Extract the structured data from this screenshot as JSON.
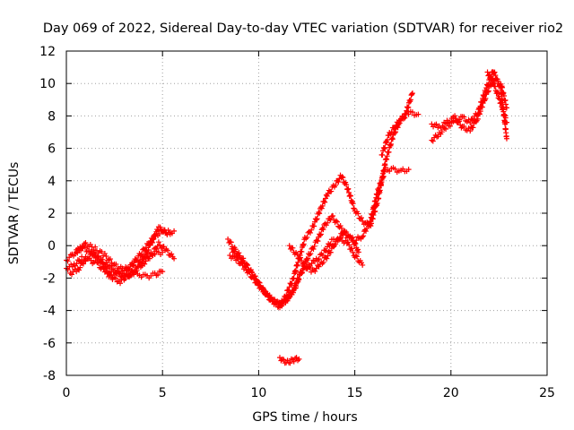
{
  "chart_data": {
    "type": "scatter",
    "title": "Day 069 of 2022, Sidereal Day-to-day VTEC variation (SDTVAR) for receiver rio2",
    "xlabel": "GPS time / hours",
    "ylabel": "SDTVAR / TECUs",
    "xlim": [
      0,
      25
    ],
    "ylim": [
      -8,
      12
    ],
    "xticks": [
      0,
      5,
      10,
      15,
      20,
      25
    ],
    "yticks": [
      -8,
      -6,
      -4,
      -2,
      0,
      2,
      4,
      6,
      8,
      10,
      12
    ],
    "grid": true,
    "grid_style": "dotted",
    "marker": "plus",
    "marker_color": "#ff0000",
    "series": [
      {
        "x": [
          0.0,
          0.3,
          0.6,
          0.9,
          1.2,
          1.6,
          2.0,
          2.4,
          2.7,
          3.0,
          3.4,
          3.8,
          4.2,
          4.6,
          5.0,
          5.4
        ],
        "y": [
          -0.9,
          -0.6,
          -0.3,
          -0.1,
          -0.4,
          -0.7,
          -1.3,
          -1.9,
          -1.6,
          -1.8,
          -1.2,
          -0.6,
          0.0,
          0.6,
          0.9,
          0.7
        ]
      },
      {
        "x": [
          0.0,
          0.4,
          0.8,
          1.2,
          1.6,
          2.0,
          2.4,
          2.8,
          3.2,
          3.6,
          4.0,
          4.4,
          4.8,
          5.2,
          5.6
        ],
        "y": [
          -1.4,
          -1.2,
          -0.8,
          -0.9,
          -1.1,
          -1.6,
          -2.0,
          -2.2,
          -1.8,
          -1.5,
          -1.1,
          -0.6,
          0.1,
          -0.3,
          -0.8
        ]
      },
      {
        "x": [
          0.2,
          0.6,
          1.0,
          1.4,
          1.8,
          2.2,
          2.6,
          3.0,
          3.4,
          3.8,
          4.2,
          4.6,
          5.0
        ],
        "y": [
          -1.7,
          -1.5,
          -0.8,
          -0.5,
          -0.9,
          -1.3,
          -1.6,
          -2.0,
          -1.7,
          -1.8,
          -1.9,
          -1.8,
          -1.6
        ]
      },
      {
        "x": [
          0.5,
          1.0,
          1.5,
          2.0,
          2.5,
          3.0,
          3.5,
          4.0,
          4.5,
          5.0
        ],
        "y": [
          -0.4,
          0.1,
          -0.2,
          -0.6,
          -1.2,
          -1.5,
          -1.1,
          -0.7,
          -0.5,
          -0.4
        ]
      },
      {
        "x": [
          3.2,
          3.6,
          4.0,
          4.4,
          4.8,
          5.2,
          5.6
        ],
        "y": [
          -1.9,
          -1.4,
          -0.8,
          0.1,
          1.1,
          0.8,
          0.9
        ]
      },
      {
        "x": [
          8.4,
          8.8,
          9.2,
          9.6,
          10.0,
          10.4,
          10.8,
          11.1,
          11.4,
          11.8,
          12.1,
          12.4,
          12.8,
          13.2,
          13.6,
          14.0,
          14.3,
          14.6,
          15.0,
          15.4,
          15.8,
          16.2,
          16.6,
          17.0,
          17.4,
          17.8,
          18.3
        ],
        "y": [
          0.4,
          -0.3,
          -0.9,
          -1.6,
          -2.3,
          -3.0,
          -3.5,
          -3.7,
          -3.1,
          -2.0,
          -0.8,
          0.4,
          1.1,
          2.2,
          3.2,
          3.8,
          4.3,
          3.6,
          2.2,
          1.5,
          1.2,
          2.8,
          5.2,
          6.8,
          7.8,
          8.2,
          8.1
        ]
      },
      {
        "x": [
          8.5,
          8.9,
          9.3,
          9.7,
          10.1,
          10.5,
          10.9,
          11.2,
          11.5,
          11.9,
          12.2,
          12.6,
          13.0,
          13.4,
          13.8,
          14.2,
          14.6,
          15.0,
          15.4,
          15.8,
          16.2,
          16.6,
          17.0,
          17.4,
          17.8
        ],
        "y": [
          -0.6,
          -0.9,
          -1.4,
          -2.0,
          -2.6,
          -3.1,
          -3.5,
          -3.6,
          -3.3,
          -2.6,
          -1.7,
          -0.6,
          0.2,
          1.2,
          1.8,
          1.2,
          0.6,
          0.3,
          0.6,
          1.5,
          3.4,
          4.7,
          4.7,
          4.6,
          4.7
        ]
      },
      {
        "x": [
          8.6,
          9.0,
          9.4,
          9.8,
          10.2,
          10.6,
          11.0,
          11.4,
          11.8,
          12.2,
          12.6,
          13.0,
          13.4,
          13.8,
          14.2,
          14.6,
          15.0,
          15.4
        ],
        "y": [
          -0.2,
          -0.8,
          -1.3,
          -2.0,
          -2.7,
          -3.3,
          -3.7,
          -3.4,
          -2.8,
          -1.6,
          -1.2,
          -0.9,
          -0.4,
          0.3,
          0.4,
          0.2,
          -0.6,
          -1.2
        ]
      },
      {
        "x": [
          11.6,
          12.0,
          12.4,
          12.8,
          13.2,
          13.6,
          14.0,
          14.4,
          14.8,
          15.2
        ],
        "y": [
          0.0,
          -0.6,
          -1.2,
          -1.6,
          -1.2,
          -0.6,
          0.2,
          0.8,
          0.6,
          -0.4
        ]
      },
      {
        "x": [
          11.1,
          11.3,
          11.5,
          11.7,
          11.9,
          12.1
        ],
        "y": [
          -6.9,
          -7.1,
          -7.2,
          -7.1,
          -7.0,
          -7.0
        ]
      },
      {
        "x": [
          16.4,
          16.8,
          17.2,
          17.6,
          18.0
        ],
        "y": [
          5.6,
          6.9,
          7.5,
          8.0,
          9.4
        ]
      },
      {
        "x": [
          19.0,
          19.4,
          19.8,
          20.2,
          20.6,
          21.0,
          21.4,
          21.8,
          22.2,
          22.6,
          22.9
        ],
        "y": [
          7.5,
          7.3,
          7.6,
          7.9,
          7.3,
          7.1,
          7.9,
          9.2,
          10.3,
          10.0,
          8.5
        ]
      },
      {
        "x": [
          19.0,
          19.4,
          19.8,
          20.2,
          20.6,
          21.0,
          21.4,
          21.8,
          22.2,
          22.6,
          22.9
        ],
        "y": [
          6.5,
          6.9,
          7.4,
          7.6,
          7.9,
          7.6,
          8.2,
          9.6,
          10.8,
          9.6,
          6.6
        ]
      },
      {
        "x": [
          21.9,
          22.1,
          22.3,
          22.5,
          22.7,
          22.9
        ],
        "y": [
          10.7,
          10.2,
          9.7,
          9.1,
          8.4,
          7.6
        ]
      }
    ]
  }
}
